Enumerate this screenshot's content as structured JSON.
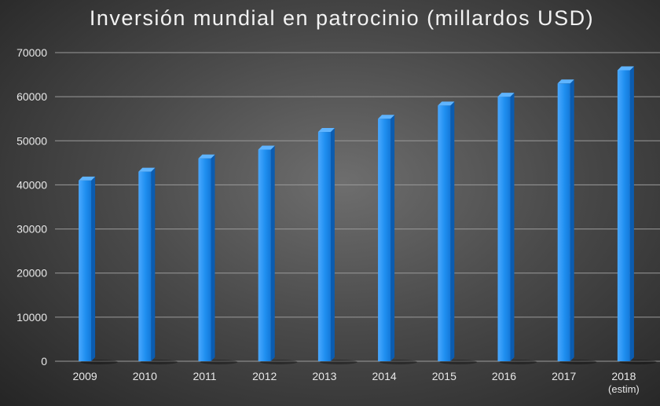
{
  "chart_data": {
    "type": "bar",
    "title": "Inversión mundial en patrocinio (millardos USD)",
    "xlabel": "",
    "ylabel": "",
    "categories": [
      "2009",
      "2010",
      "2011",
      "2012",
      "2013",
      "2014",
      "2015",
      "2016",
      "2017",
      "2018"
    ],
    "category_sublabels": [
      "",
      "",
      "",
      "",
      "",
      "",
      "",
      "",
      "",
      "(estim)"
    ],
    "values": [
      41000,
      43000,
      46000,
      48000,
      52000,
      55000,
      58000,
      60000,
      63000,
      66000
    ],
    "ylim": [
      0,
      70000
    ],
    "yticks": [
      0,
      10000,
      20000,
      30000,
      40000,
      50000,
      60000,
      70000
    ],
    "grid": true,
    "legend": "none",
    "colors": {
      "bar_front": "#1f8ff0",
      "bar_side": "#0b5cb0",
      "bar_top": "#5fb4ff",
      "grid": "#9a9a9a",
      "text": "#e8e8e8"
    }
  }
}
